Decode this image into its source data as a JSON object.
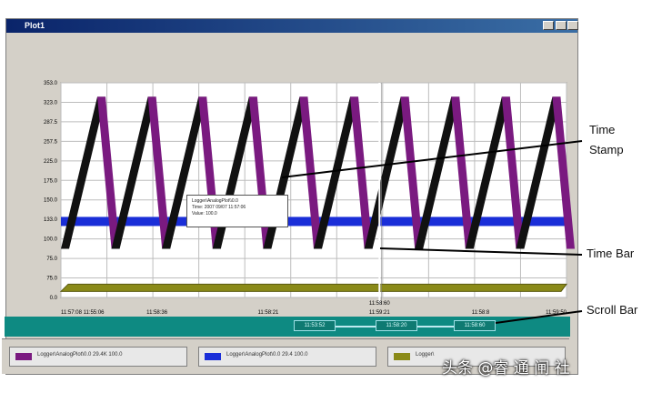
{
  "window": {
    "title": "Plot1"
  },
  "chart_data": {
    "type": "line",
    "y_ticks": [
      "353.0",
      "323.0",
      "287.5",
      "257.5",
      "225.0",
      "175.0",
      "150.0",
      "133.0",
      "100.0",
      "75.0",
      "75.0",
      "0.0"
    ],
    "x_ticks": [
      "11:57:08 11:55:06",
      "11:58:36",
      "11:58:21",
      "11:59:21",
      "11:58:8",
      "11:59:50"
    ],
    "time_bar_label": "11:58:60",
    "series": [
      {
        "name": "",
        "color": "#7a1a80",
        "shape": "sawtooth",
        "teeth": 10,
        "ymin": 80,
        "ymax": 330
      },
      {
        "name": "",
        "color": "#1a2ed8",
        "shape": "flat",
        "y": 125
      },
      {
        "name": "",
        "color": "#8a8a18",
        "shape": "flat",
        "y": 10
      }
    ],
    "ylim": [
      0,
      353
    ],
    "grid": true
  },
  "tooltip": {
    "lines": [
      "Logger\\AnalogPlot\\\\0.0",
      "Time: 2007 09/07 11:57:06",
      "Value: 100.0"
    ]
  },
  "scrollbar": {
    "chips": [
      "11:53:52",
      "11:58:20",
      "11:58:60"
    ]
  },
  "legend": [
    {
      "color": "#7a1a80",
      "text": "Logger\\AnalogPlot\\0.0 29.4K    100.0"
    },
    {
      "color": "#1a2ed8",
      "text": "Logger\\AnalogPlot\\0.0 29.4   100.0"
    },
    {
      "color": "#8a8a18",
      "text": "Logger\\"
    }
  ],
  "annotations": {
    "time_stamp": "Time Stamp",
    "time_bar": "Time Bar",
    "scroll_bar": "Scroll Bar"
  },
  "watermark": "头条 @睿 通 闸 社"
}
